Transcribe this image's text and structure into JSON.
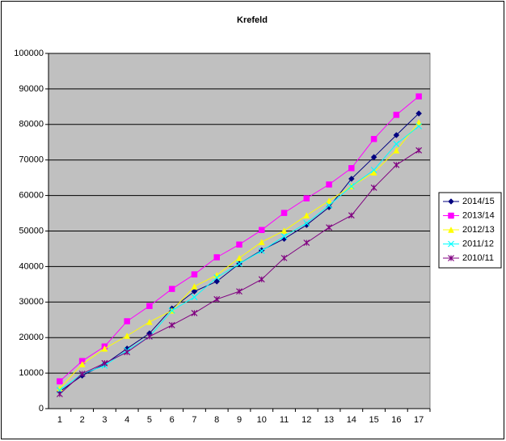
{
  "chart_data": {
    "type": "line",
    "title": "Krefeld",
    "categories": [
      "1",
      "2",
      "3",
      "4",
      "5",
      "6",
      "7",
      "8",
      "9",
      "10",
      "11",
      "12",
      "13",
      "14",
      "15",
      "16",
      "17"
    ],
    "ylim": [
      0,
      100000
    ],
    "yticks": [
      0,
      10000,
      20000,
      30000,
      40000,
      50000,
      60000,
      70000,
      80000,
      90000,
      100000
    ],
    "grid": true,
    "legend": "right",
    "series": [
      {
        "name": "2014/15",
        "color": "#000080",
        "values": [
          4800,
          9300,
          12500,
          16900,
          21200,
          28200,
          33000,
          35800,
          40800,
          44600,
          47800,
          51700,
          56700,
          64700,
          70800,
          77000,
          83100
        ]
      },
      {
        "name": "2013/14",
        "color": "#ff00ff",
        "values": [
          7700,
          13400,
          17500,
          24600,
          28900,
          33700,
          37800,
          42600,
          46200,
          50300,
          55100,
          59200,
          63100,
          67700,
          75900,
          82700,
          87900
        ]
      },
      {
        "name": "2012/13",
        "color": "#ffff00",
        "values": [
          5700,
          12500,
          16900,
          20500,
          24400,
          27600,
          34400,
          37600,
          42400,
          46900,
          50100,
          54400,
          58500,
          62600,
          66500,
          72700,
          80600
        ]
      },
      {
        "name": "2011/12",
        "color": "#00ffff",
        "values": [
          5200,
          9800,
          12100,
          16400,
          20300,
          27600,
          31400,
          36900,
          40800,
          44400,
          48500,
          52200,
          57200,
          62600,
          67200,
          74500,
          79500
        ]
      },
      {
        "name": "2010/11",
        "color": "#800080",
        "values": [
          4100,
          9800,
          12800,
          15900,
          20300,
          23500,
          26900,
          30800,
          33000,
          36400,
          42400,
          46700,
          51000,
          54400,
          62200,
          68600,
          72700
        ]
      }
    ]
  }
}
